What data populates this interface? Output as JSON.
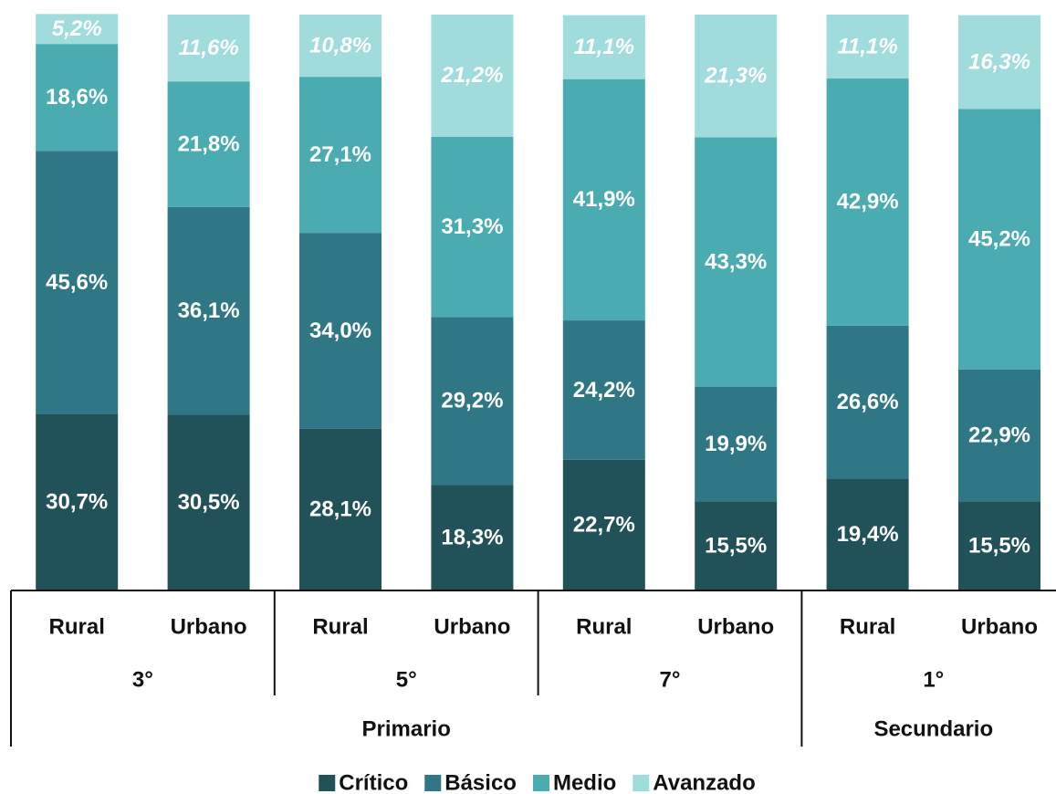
{
  "chart_data": {
    "type": "bar",
    "stacked": true,
    "categories": [
      "Rural",
      "Urbano",
      "Rural",
      "Urbano",
      "Rural",
      "Urbano",
      "Rural",
      "Urbano"
    ],
    "supergroups": [
      {
        "name": "Primario",
        "groups": [
          {
            "name": "3°"
          },
          {
            "name": "5°"
          },
          {
            "name": "7°"
          }
        ]
      },
      {
        "name": "Secundario",
        "groups": [
          {
            "name": "1°"
          }
        ]
      }
    ],
    "ylim": [
      0,
      100
    ],
    "series": [
      {
        "name": "Crítico",
        "color": "#215159",
        "values": [
          30.7,
          30.5,
          28.1,
          18.3,
          22.7,
          15.5,
          19.4,
          15.5
        ],
        "value_labels": [
          "30,7%",
          "30,5%",
          "28,1%",
          "18,3%",
          "22,7%",
          "15,5%",
          "19,4%",
          "15,5%"
        ]
      },
      {
        "name": "Básico",
        "color": "#2f7784",
        "values": [
          45.6,
          36.1,
          34.0,
          29.2,
          24.2,
          19.9,
          26.6,
          22.9
        ],
        "value_labels": [
          "45,6%",
          "36,1%",
          "34,0%",
          "29,2%",
          "24,2%",
          "19,9%",
          "26,6%",
          "22,9%"
        ]
      },
      {
        "name": "Medio",
        "color": "#4aacb0",
        "values": [
          18.6,
          21.8,
          27.1,
          31.3,
          41.9,
          43.3,
          42.9,
          45.2
        ],
        "value_labels": [
          "18,6%",
          "21,8%",
          "27,1%",
          "31,3%",
          "41,9%",
          "43,3%",
          "42,9%",
          "45,2%"
        ]
      },
      {
        "name": "Avanzado",
        "color": "#a0dcdc",
        "italic_labels": true,
        "values": [
          5.2,
          11.6,
          10.8,
          21.2,
          11.1,
          21.3,
          11.1,
          16.3
        ],
        "value_labels": [
          "5,2%",
          "11,6%",
          "10,8%",
          "21,2%",
          "11,1%",
          "21,3%",
          "11,1%",
          "16,3%"
        ]
      }
    ],
    "legend": "bottom"
  }
}
